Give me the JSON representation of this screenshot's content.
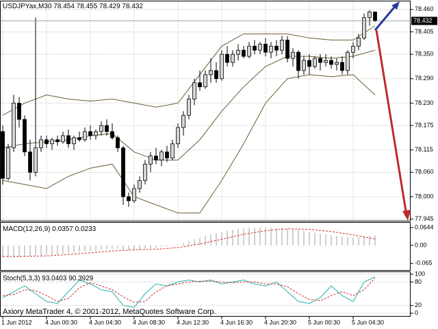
{
  "chart_data": [
    {
      "type": "candlestick",
      "title": "USDJPYax,M30",
      "categories": [
        "1 Jun 2012",
        null,
        null,
        null,
        null,
        null,
        null,
        null,
        "4 Jun 00:30",
        null,
        null,
        null,
        null,
        null,
        null,
        null,
        "4 Jun 04:30",
        null,
        null,
        null,
        null,
        null,
        null,
        null,
        "4 Jun 08:30",
        null,
        null,
        null,
        null,
        null,
        null,
        null,
        "4 Jun 12:30",
        null,
        null,
        null,
        null,
        null,
        null,
        null,
        "4 Jun 16:30",
        null,
        null,
        null,
        null,
        null,
        null,
        null,
        "4 Jun 20:30",
        null,
        null,
        null,
        null,
        null,
        null,
        null,
        "5 Jun 00:30",
        null,
        null,
        null,
        null,
        null,
        null,
        null,
        "5 Jun 04:30",
        null,
        null,
        null,
        null
      ],
      "open": [
        78.16,
        78.045,
        78.12,
        78.23,
        78.19,
        78.11,
        78.06,
        78.12,
        78.14,
        78.13,
        78.14,
        78.135,
        78.15,
        78.13,
        78.145,
        78.14,
        78.16,
        78.15,
        78.16,
        78.175,
        78.16,
        78.145,
        78.12,
        78.0,
        77.99,
        78.02,
        78.04,
        78.08,
        78.1,
        78.09,
        78.11,
        78.095,
        78.13,
        78.17,
        78.2,
        78.24,
        78.28,
        78.27,
        78.3,
        78.31,
        78.29,
        78.35,
        78.33,
        78.35,
        78.36,
        78.345,
        78.37,
        78.36,
        78.375,
        78.355,
        78.37,
        78.36,
        78.385,
        78.34,
        78.355,
        78.31,
        78.335,
        78.32,
        78.34,
        78.33,
        78.335,
        78.325,
        78.33,
        78.31,
        78.355,
        78.37,
        78.39,
        78.44,
        78.454
      ],
      "high": [
        78.175,
        78.13,
        78.25,
        78.245,
        78.2,
        78.14,
        78.44,
        78.15,
        78.15,
        78.145,
        78.15,
        78.16,
        78.165,
        78.15,
        78.16,
        78.17,
        78.175,
        78.165,
        78.185,
        78.19,
        78.18,
        78.15,
        78.125,
        78.01,
        78.03,
        78.05,
        78.09,
        78.11,
        78.12,
        78.115,
        78.125,
        78.14,
        78.18,
        78.21,
        78.25,
        78.29,
        78.31,
        78.31,
        78.34,
        78.33,
        78.36,
        78.37,
        78.36,
        78.375,
        78.37,
        78.38,
        78.385,
        78.38,
        78.39,
        78.38,
        78.385,
        78.395,
        78.395,
        78.365,
        78.36,
        78.345,
        78.35,
        78.345,
        78.35,
        78.35,
        78.345,
        78.34,
        78.345,
        78.36,
        78.38,
        78.4,
        78.45,
        78.458,
        78.455
      ],
      "low": [
        78.03,
        78.04,
        78.11,
        78.17,
        78.1,
        78.04,
        78.05,
        78.11,
        78.12,
        78.115,
        78.125,
        78.13,
        78.12,
        78.115,
        78.135,
        78.135,
        78.14,
        78.14,
        78.15,
        78.15,
        78.14,
        78.11,
        77.98,
        77.975,
        77.985,
        78.01,
        78.03,
        78.06,
        78.08,
        78.075,
        78.085,
        78.09,
        78.12,
        78.15,
        78.19,
        78.225,
        78.26,
        78.265,
        78.28,
        78.28,
        78.285,
        78.32,
        78.32,
        78.335,
        78.34,
        78.34,
        78.35,
        78.35,
        78.345,
        78.34,
        78.345,
        78.35,
        78.33,
        78.32,
        78.29,
        78.3,
        78.3,
        78.315,
        78.31,
        78.32,
        78.315,
        78.31,
        78.3,
        78.3,
        78.34,
        78.36,
        78.385,
        78.42,
        78.429
      ],
      "close": [
        78.045,
        78.12,
        78.23,
        78.19,
        78.11,
        78.06,
        78.12,
        78.14,
        78.13,
        78.14,
        78.135,
        78.15,
        78.13,
        78.145,
        78.14,
        78.16,
        78.15,
        78.16,
        78.175,
        78.16,
        78.145,
        78.12,
        78.0,
        77.99,
        78.02,
        78.04,
        78.08,
        78.1,
        78.09,
        78.11,
        78.095,
        78.13,
        78.17,
        78.2,
        78.24,
        78.28,
        78.27,
        78.3,
        78.31,
        78.29,
        78.35,
        78.33,
        78.35,
        78.36,
        78.345,
        78.37,
        78.36,
        78.375,
        78.355,
        78.37,
        78.36,
        78.385,
        78.34,
        78.355,
        78.31,
        78.335,
        78.32,
        78.34,
        78.33,
        78.335,
        78.325,
        78.33,
        78.31,
        78.355,
        78.37,
        78.39,
        78.44,
        78.454,
        78.432
      ],
      "up_color": "#d4d4d4",
      "down_color": "#000000",
      "overlays": [
        {
          "color": "#6e5a36",
          "x": [
            0,
            4,
            8,
            12,
            16,
            20,
            24,
            28,
            32,
            36,
            40,
            44,
            48,
            52,
            56,
            60,
            64,
            68
          ],
          "values": [
            78.2,
            78.23,
            78.25,
            78.24,
            78.235,
            78.24,
            78.23,
            78.22,
            78.23,
            78.3,
            78.37,
            78.4,
            78.4,
            78.4,
            78.39,
            78.385,
            78.385,
            78.42
          ]
        },
        {
          "color": "#6e5a36",
          "x": [
            0,
            4,
            8,
            12,
            16,
            20,
            24,
            28,
            32,
            36,
            40,
            44,
            48,
            52,
            56,
            60,
            64,
            68
          ],
          "values": [
            78.12,
            78.13,
            78.135,
            78.14,
            78.15,
            78.155,
            78.11,
            78.09,
            78.09,
            78.14,
            78.21,
            78.27,
            78.32,
            78.345,
            78.345,
            78.34,
            78.345,
            78.36
          ]
        },
        {
          "color": "#6e5a36",
          "x": [
            0,
            4,
            8,
            12,
            16,
            20,
            24,
            28,
            32,
            36,
            40,
            44,
            48,
            52,
            56,
            60,
            64,
            68
          ],
          "values": [
            78.04,
            78.03,
            78.02,
            78.05,
            78.07,
            78.08,
            78.0,
            77.98,
            77.96,
            77.96,
            78.04,
            78.13,
            78.23,
            78.29,
            78.3,
            78.295,
            78.3,
            78.25
          ]
        }
      ],
      "ylim": [
        77.941,
        78.48
      ],
      "yticks": [
        {
          "value": 78.46,
          "label": "78.460"
        },
        78.405,
        {
          "value": 78.35,
          "label": "78.350"
        },
        {
          "value": 78.29,
          "label": "78.290"
        },
        {
          "value": 78.23,
          "label": "78.230"
        },
        78.175,
        78.115,
        {
          "value": 78.06,
          "label": "78.060"
        },
        {
          "value": 78,
          "label": "78.000"
        },
        77.945
      ],
      "grid": true
    },
    {
      "type": "macd",
      "title": "MACD(12,26,9)",
      "color": "#c0c0c0",
      "values": [
        -0.045,
        -0.044,
        -0.043,
        -0.042,
        -0.041,
        -0.04,
        -0.038,
        -0.037,
        -0.035,
        -0.034,
        -0.032,
        -0.03,
        -0.028,
        -0.026,
        -0.024,
        -0.022,
        -0.02,
        -0.018,
        -0.015,
        -0.013,
        -0.012,
        -0.012,
        -0.016,
        -0.018,
        -0.018,
        -0.016,
        -0.013,
        -0.01,
        -0.008,
        -0.006,
        -0.003,
        0.0,
        0.004,
        0.009,
        0.015,
        0.022,
        0.028,
        0.034,
        0.04,
        0.044,
        0.049,
        0.053,
        0.056,
        0.059,
        0.061,
        0.063,
        0.064,
        0.065,
        0.065,
        0.064,
        0.063,
        0.063,
        0.061,
        0.059,
        0.056,
        0.052,
        0.049,
        0.046,
        0.043,
        0.04,
        0.037,
        0.034,
        0.031,
        0.029,
        0.028,
        0.029,
        0.031,
        0.034,
        0.0357
      ],
      "signal": {
        "color": "#d03030",
        "x": [
          0,
          4,
          8,
          12,
          16,
          20,
          24,
          28,
          32,
          36,
          40,
          44,
          48,
          52,
          56,
          60,
          64,
          68
        ],
        "values": [
          -0.04,
          -0.04,
          -0.038,
          -0.033,
          -0.027,
          -0.02,
          -0.016,
          -0.014,
          -0.008,
          0.005,
          0.022,
          0.04,
          0.053,
          0.06,
          0.058,
          0.05,
          0.038,
          0.0233
        ]
      },
      "ylim": [
        -0.0916,
        0.0817
      ],
      "yticks": [
        0.0644,
        {
          "value": 0,
          "label": "0.00"
        },
        -0.065
      ]
    },
    {
      "type": "stochastic",
      "title": "Stoch(5,3,3)",
      "x": [
        0,
        2,
        4,
        6,
        8,
        10,
        12,
        14,
        16,
        18,
        20,
        22,
        24,
        26,
        28,
        30,
        32,
        34,
        36,
        38,
        40,
        42,
        44,
        46,
        48,
        50,
        52,
        54,
        56,
        58,
        60,
        62,
        64,
        66,
        68
      ],
      "series": [
        {
          "color": "#20b2aa",
          "values": [
            40,
            55,
            70,
            50,
            30,
            25,
            55,
            85,
            75,
            60,
            55,
            20,
            15,
            50,
            75,
            70,
            80,
            85,
            80,
            85,
            75,
            80,
            85,
            75,
            70,
            80,
            55,
            30,
            25,
            40,
            70,
            45,
            30,
            80,
            93.0403
          ]
        },
        {
          "color": "#d03030",
          "values": [
            45,
            48,
            60,
            58,
            45,
            30,
            38,
            65,
            78,
            70,
            60,
            42,
            28,
            30,
            55,
            70,
            75,
            80,
            82,
            82,
            80,
            78,
            80,
            80,
            75,
            75,
            68,
            50,
            35,
            32,
            45,
            55,
            45,
            60,
            90.3929
          ]
        }
      ],
      "ylim": [
        0,
        100
      ],
      "yticks": [
        100,
        80,
        20,
        0
      ]
    }
  ],
  "watermark": "Axiory MetaTrader 4, © 2001-2012, MetaQuotes Software Corp."
}
